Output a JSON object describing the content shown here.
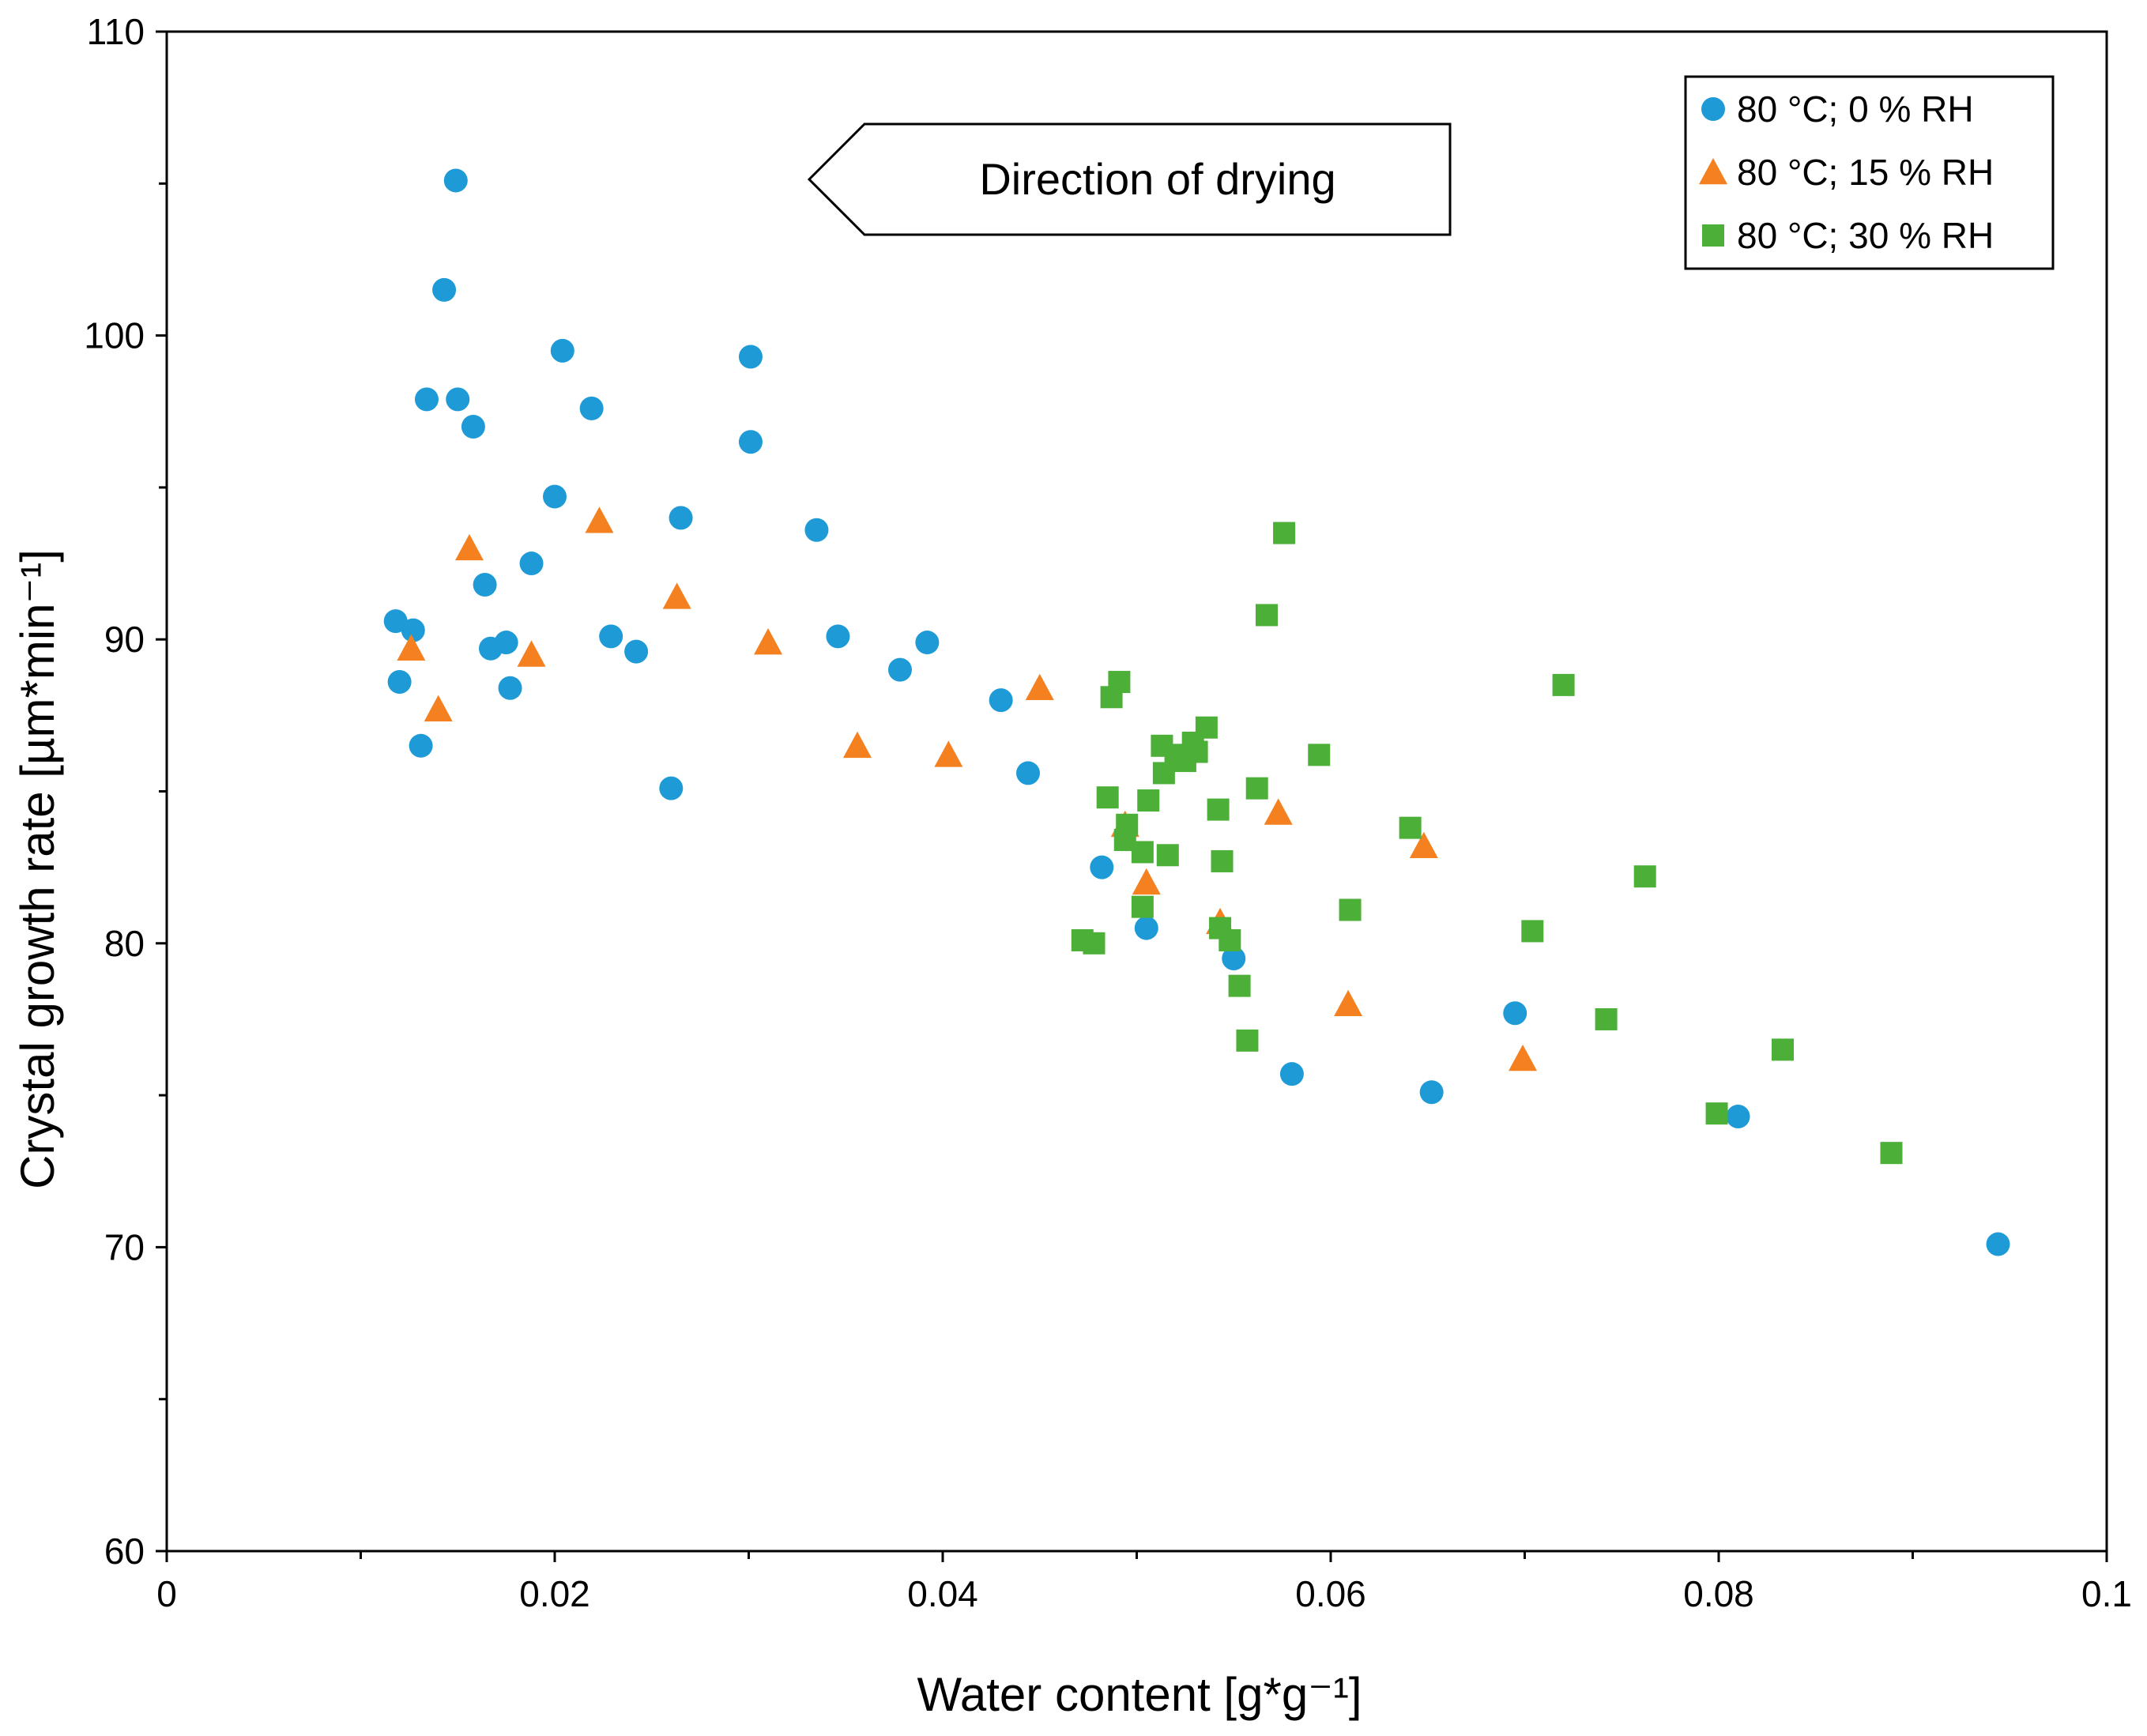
{
  "chart_data": {
    "type": "scatter",
    "title": "",
    "xlabel": "Water content [g*g⁻¹]",
    "ylabel": "Crystal growth rate [µm*min⁻¹]",
    "xlim": [
      0,
      0.1
    ],
    "ylim": [
      60,
      110
    ],
    "x_ticks": [
      0,
      0.02,
      0.04,
      0.06,
      0.08,
      0.1
    ],
    "x_tick_labels": [
      "0",
      "0.02",
      "0.04",
      "0.06",
      "0.08",
      "0.1"
    ],
    "y_ticks": [
      60,
      70,
      80,
      90,
      100,
      110
    ],
    "y_tick_labels": [
      "60",
      "70",
      "80",
      "90",
      "100",
      "110"
    ],
    "grid": false,
    "legend_position": "top-right",
    "annotation": {
      "text": "Direction of drying",
      "arrow_direction": "left"
    },
    "series": [
      {
        "name": "80 °C; 0 % RH",
        "marker": "circle",
        "color": "#1E9BD7",
        "points": [
          [
            0.0149,
            105.1
          ],
          [
            0.0143,
            101.5
          ],
          [
            0.0204,
            99.5
          ],
          [
            0.0301,
            99.3
          ],
          [
            0.0134,
            97.9
          ],
          [
            0.015,
            97.9
          ],
          [
            0.0219,
            97.6
          ],
          [
            0.0158,
            97.0
          ],
          [
            0.0301,
            96.5
          ],
          [
            0.02,
            94.7
          ],
          [
            0.0265,
            94.0
          ],
          [
            0.0335,
            93.6
          ],
          [
            0.0188,
            92.5
          ],
          [
            0.0164,
            91.8
          ],
          [
            0.0118,
            90.6
          ],
          [
            0.0127,
            90.3
          ],
          [
            0.0229,
            90.1
          ],
          [
            0.0346,
            90.1
          ],
          [
            0.0175,
            89.9
          ],
          [
            0.0392,
            89.9
          ],
          [
            0.0167,
            89.7
          ],
          [
            0.0242,
            89.6
          ],
          [
            0.0378,
            89.0
          ],
          [
            0.012,
            88.6
          ],
          [
            0.0177,
            88.4
          ],
          [
            0.043,
            88.0
          ],
          [
            0.0131,
            86.5
          ],
          [
            0.0444,
            85.6
          ],
          [
            0.026,
            85.1
          ],
          [
            0.0482,
            82.5
          ],
          [
            0.0505,
            80.5
          ],
          [
            0.055,
            79.5
          ],
          [
            0.0695,
            77.7
          ],
          [
            0.058,
            75.7
          ],
          [
            0.0652,
            75.1
          ],
          [
            0.081,
            74.3
          ],
          [
            0.0944,
            70.1
          ]
        ]
      },
      {
        "name": "80 °C; 15 % RH",
        "marker": "triangle",
        "color": "#F58020",
        "points": [
          [
            0.0223,
            93.9
          ],
          [
            0.0156,
            93.0
          ],
          [
            0.0263,
            91.4
          ],
          [
            0.031,
            89.9
          ],
          [
            0.0126,
            89.7
          ],
          [
            0.0188,
            89.5
          ],
          [
            0.045,
            88.4
          ],
          [
            0.014,
            87.7
          ],
          [
            0.0356,
            86.5
          ],
          [
            0.0403,
            86.2
          ],
          [
            0.0573,
            84.3
          ],
          [
            0.0494,
            83.9
          ],
          [
            0.0648,
            83.2
          ],
          [
            0.0505,
            82.0
          ],
          [
            0.0543,
            80.7
          ],
          [
            0.0609,
            78.0
          ],
          [
            0.0699,
            76.2
          ]
        ]
      },
      {
        "name": "80 °C; 30 % RH",
        "marker": "square",
        "color": "#4CAF38",
        "points": [
          [
            0.0576,
            93.5
          ],
          [
            0.0567,
            90.8
          ],
          [
            0.072,
            88.5
          ],
          [
            0.0491,
            88.6
          ],
          [
            0.0487,
            88.1
          ],
          [
            0.0536,
            87.1
          ],
          [
            0.0513,
            86.5
          ],
          [
            0.0529,
            86.6
          ],
          [
            0.0531,
            86.3
          ],
          [
            0.052,
            86.2
          ],
          [
            0.0525,
            86.0
          ],
          [
            0.0594,
            86.2
          ],
          [
            0.0514,
            85.6
          ],
          [
            0.0562,
            85.1
          ],
          [
            0.0485,
            84.8
          ],
          [
            0.0506,
            84.7
          ],
          [
            0.0542,
            84.4
          ],
          [
            0.0495,
            83.9
          ],
          [
            0.0641,
            83.8
          ],
          [
            0.0494,
            83.4
          ],
          [
            0.0503,
            83.0
          ],
          [
            0.0516,
            82.9
          ],
          [
            0.0544,
            82.7
          ],
          [
            0.0762,
            82.2
          ],
          [
            0.0503,
            81.2
          ],
          [
            0.061,
            81.1
          ],
          [
            0.0704,
            80.4
          ],
          [
            0.0543,
            80.5
          ],
          [
            0.0472,
            80.1
          ],
          [
            0.0478,
            80.0
          ],
          [
            0.0548,
            80.1
          ],
          [
            0.0553,
            78.6
          ],
          [
            0.0742,
            77.5
          ],
          [
            0.0557,
            76.8
          ],
          [
            0.0833,
            76.5
          ],
          [
            0.0799,
            74.4
          ],
          [
            0.0889,
            73.1
          ]
        ]
      }
    ]
  }
}
